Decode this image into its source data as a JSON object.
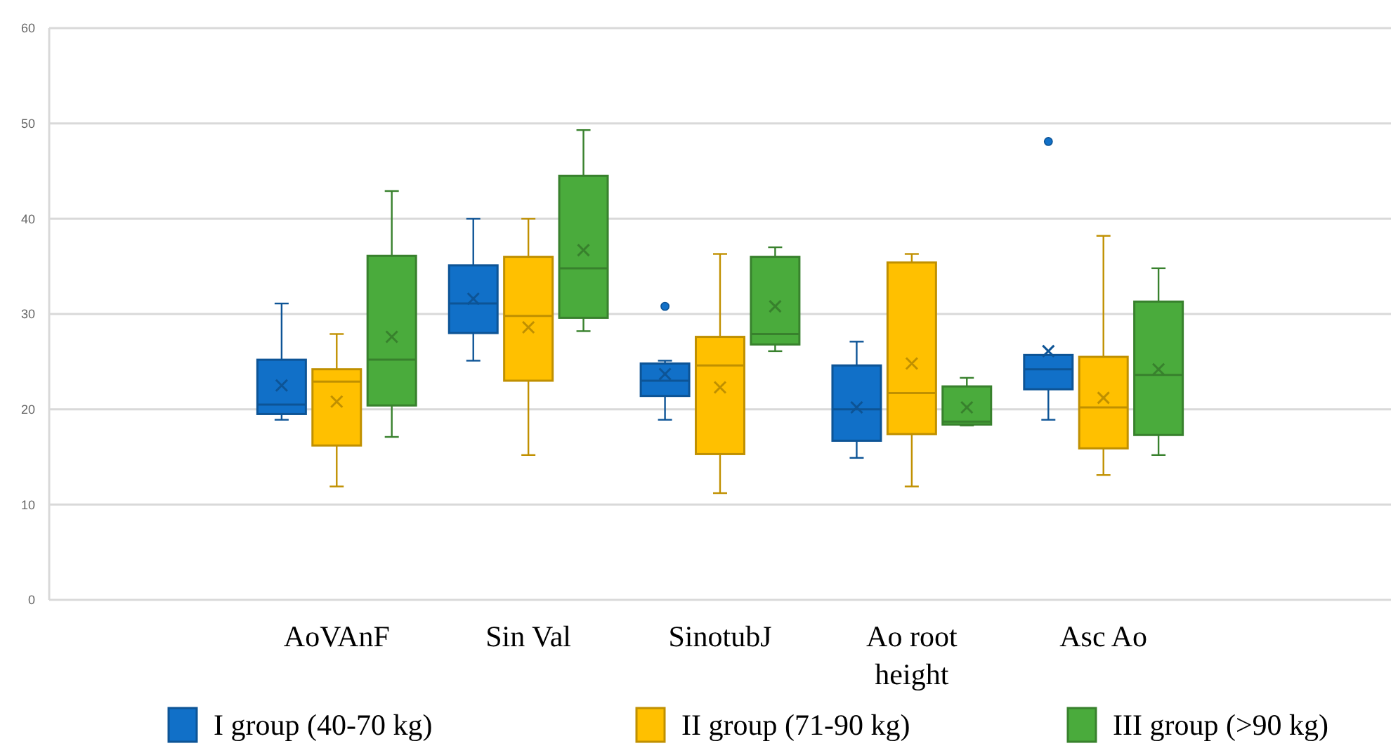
{
  "chart_data": {
    "type": "box",
    "categories": [
      null,
      "AoVAnF",
      "Sin Val",
      "SinotubJ",
      "Ao root height",
      "Asc Ao",
      null
    ],
    "ylim": [
      0,
      60
    ],
    "yticks": [
      0,
      10,
      20,
      30,
      40,
      50,
      60
    ],
    "grid": "y",
    "legend": "bottom",
    "series": [
      {
        "name": "I group (40-70 kg)",
        "color": "#1170c8",
        "boxes": [
          null,
          {
            "low": 18.9,
            "q1": 19.5,
            "median": 20.5,
            "q3": 25.2,
            "high": 31.1,
            "mean": 22.5
          },
          {
            "low": 25.1,
            "q1": 28.0,
            "median": 31.1,
            "q3": 35.1,
            "high": 40.0,
            "mean": 31.6
          },
          {
            "low": 18.9,
            "q1": 21.4,
            "median": 23.0,
            "q3": 24.8,
            "high": 25.1,
            "mean": 23.7,
            "outliers": [
              30.8
            ]
          },
          {
            "low": 14.9,
            "q1": 16.7,
            "median": 20.0,
            "q3": 24.6,
            "high": 27.1,
            "mean": 20.2
          },
          {
            "low": 18.9,
            "q1": 22.1,
            "median": 24.2,
            "q3": 25.7,
            "high": 25.7,
            "mean": 26.1,
            "outliers": [
              48.1
            ]
          },
          null
        ]
      },
      {
        "name": "II group (71-90 kg)",
        "color": "#ffc000",
        "boxes": [
          null,
          {
            "low": 11.9,
            "q1": 16.2,
            "median": 22.9,
            "q3": 24.2,
            "high": 27.9,
            "mean": 20.8
          },
          {
            "low": 15.2,
            "q1": 23.0,
            "median": 29.8,
            "q3": 36.0,
            "high": 40.0,
            "mean": 28.6
          },
          {
            "low": 11.2,
            "q1": 15.3,
            "median": 24.6,
            "q3": 27.6,
            "high": 36.3,
            "mean": 22.3
          },
          {
            "low": 11.9,
            "q1": 17.4,
            "median": 21.7,
            "q3": 35.4,
            "high": 36.3,
            "mean": 24.8
          },
          {
            "low": 13.1,
            "q1": 15.9,
            "median": 20.2,
            "q3": 25.5,
            "high": 38.2,
            "mean": 21.2
          },
          null
        ]
      },
      {
        "name": "III group (>90 kg)",
        "color": "#4aab3c",
        "boxes": [
          null,
          {
            "low": 17.1,
            "q1": 20.4,
            "median": 25.2,
            "q3": 36.1,
            "high": 42.9,
            "mean": 27.6
          },
          {
            "low": 28.2,
            "q1": 29.6,
            "median": 34.8,
            "q3": 44.5,
            "high": 49.3,
            "mean": 36.7
          },
          {
            "low": 26.1,
            "q1": 26.8,
            "median": 27.9,
            "q3": 36.0,
            "high": 37.0,
            "mean": 30.8
          },
          {
            "low": 18.3,
            "q1": 18.4,
            "median": 18.7,
            "q3": 22.4,
            "high": 23.3,
            "mean": 20.2
          },
          {
            "low": 15.2,
            "q1": 17.3,
            "median": 23.6,
            "q3": 31.3,
            "high": 34.8,
            "mean": 24.2
          },
          null
        ]
      }
    ]
  }
}
